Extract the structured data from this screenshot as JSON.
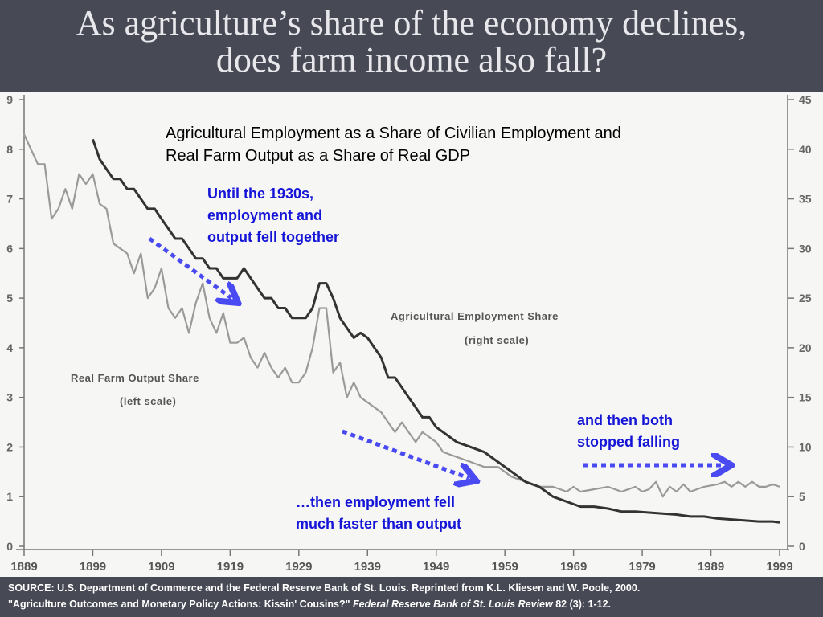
{
  "slide": {
    "title_line1": "As agriculture’s share of the economy declines,",
    "title_line2": "does farm income also fall?"
  },
  "chart_data": {
    "type": "line",
    "title_line1": "Agricultural Employment as a Share of Civilian Employment and",
    "title_line2": "Real Farm Output as a Share of Real GDP",
    "x_ticks": [
      "1889",
      "1899",
      "1909",
      "1919",
      "1929",
      "1939",
      "1949",
      "1959",
      "1969",
      "1979",
      "1989",
      "1999"
    ],
    "xlim": [
      1889,
      1999
    ],
    "left_axis": {
      "ticks": [
        "0",
        "1",
        "2",
        "3",
        "4",
        "5",
        "6",
        "7",
        "8",
        "9"
      ],
      "ylim": [
        0,
        9
      ]
    },
    "right_axis": {
      "ticks": [
        "0",
        "5",
        "10",
        "15",
        "20",
        "25",
        "30",
        "35",
        "40",
        "45"
      ],
      "ylim": [
        0,
        45
      ]
    },
    "series": [
      {
        "name": "Real Farm Output Share",
        "label_line1": "Real Farm Output Share",
        "label_line2": "(left scale)",
        "axis": "left",
        "color": "#9a9a9a",
        "x": [
          1889,
          1890,
          1891,
          1892,
          1893,
          1894,
          1895,
          1896,
          1897,
          1898,
          1899,
          1900,
          1901,
          1902,
          1903,
          1904,
          1905,
          1906,
          1907,
          1908,
          1909,
          1910,
          1911,
          1912,
          1913,
          1914,
          1915,
          1916,
          1917,
          1918,
          1919,
          1920,
          1921,
          1922,
          1923,
          1924,
          1925,
          1926,
          1927,
          1928,
          1929,
          1930,
          1931,
          1932,
          1933,
          1934,
          1935,
          1936,
          1937,
          1938,
          1939,
          1940,
          1941,
          1942,
          1943,
          1944,
          1945,
          1946,
          1947,
          1948,
          1949,
          1950,
          1952,
          1954,
          1956,
          1958,
          1960,
          1962,
          1964,
          1966,
          1968,
          1969,
          1970,
          1972,
          1974,
          1976,
          1978,
          1979,
          1980,
          1981,
          1982,
          1983,
          1984,
          1985,
          1986,
          1988,
          1990,
          1991,
          1992,
          1993,
          1994,
          1995,
          1996,
          1997,
          1998,
          1999
        ],
        "values": [
          8.3,
          8.0,
          7.7,
          7.7,
          6.6,
          6.8,
          7.2,
          6.8,
          7.5,
          7.3,
          7.5,
          6.9,
          6.8,
          6.1,
          6.0,
          5.9,
          5.5,
          5.9,
          5.0,
          5.2,
          5.6,
          4.8,
          4.6,
          4.8,
          4.3,
          4.9,
          5.3,
          4.6,
          4.3,
          4.7,
          4.1,
          4.1,
          4.2,
          3.8,
          3.6,
          3.9,
          3.6,
          3.4,
          3.6,
          3.3,
          3.3,
          3.5,
          4.0,
          4.8,
          4.8,
          3.5,
          3.7,
          3.0,
          3.3,
          3.0,
          2.9,
          2.8,
          2.7,
          2.5,
          2.3,
          2.5,
          2.3,
          2.1,
          2.3,
          2.2,
          2.1,
          1.9,
          1.8,
          1.7,
          1.6,
          1.6,
          1.4,
          1.3,
          1.2,
          1.2,
          1.1,
          1.2,
          1.1,
          1.15,
          1.2,
          1.1,
          1.2,
          1.1,
          1.15,
          1.3,
          1.0,
          1.2,
          1.1,
          1.25,
          1.1,
          1.2,
          1.25,
          1.3,
          1.2,
          1.3,
          1.2,
          1.3,
          1.2,
          1.2,
          1.25,
          1.2
        ]
      },
      {
        "name": "Agricultural Employment Share",
        "label_line1": "Agricultural Employment Share",
        "label_line2": "(right scale)",
        "axis": "right",
        "color": "#333333",
        "x": [
          1899,
          1900,
          1901,
          1902,
          1903,
          1904,
          1905,
          1906,
          1907,
          1908,
          1909,
          1910,
          1911,
          1912,
          1913,
          1914,
          1915,
          1916,
          1917,
          1918,
          1919,
          1920,
          1921,
          1922,
          1923,
          1924,
          1925,
          1926,
          1927,
          1928,
          1929,
          1930,
          1931,
          1932,
          1933,
          1934,
          1935,
          1936,
          1937,
          1938,
          1939,
          1940,
          1941,
          1942,
          1943,
          1944,
          1945,
          1946,
          1947,
          1948,
          1949,
          1950,
          1952,
          1954,
          1956,
          1958,
          1960,
          1962,
          1964,
          1966,
          1968,
          1970,
          1972,
          1974,
          1976,
          1978,
          1980,
          1982,
          1984,
          1986,
          1988,
          1990,
          1992,
          1994,
          1996,
          1998,
          1999
        ],
        "values": [
          41,
          39,
          38,
          37,
          37,
          36,
          36,
          35,
          34,
          34,
          33,
          32,
          31,
          31,
          30,
          29,
          29,
          28,
          28,
          27,
          27,
          27,
          28,
          27,
          26,
          25,
          25,
          24,
          24,
          23,
          23,
          23,
          24,
          26.5,
          26.5,
          25,
          23,
          22,
          21,
          21.5,
          21,
          20,
          19,
          17,
          17,
          16,
          15,
          14,
          13,
          13,
          12,
          11.5,
          10.5,
          10,
          9.5,
          8.5,
          7.5,
          6.5,
          6,
          5,
          4.5,
          4,
          4,
          3.8,
          3.5,
          3.5,
          3.4,
          3.3,
          3.2,
          3,
          3,
          2.8,
          2.7,
          2.6,
          2.5,
          2.5,
          2.4
        ]
      }
    ],
    "annotations": {
      "a1_line1": "Until the 1930s,",
      "a1_line2": "employment and",
      "a1_line3": "output fell together",
      "a2_line1": "…then employment fell",
      "a2_line2": "much faster than output",
      "a3_line1": "and then both",
      "a3_line2": "stopped falling"
    },
    "annotation_color": "#1515d8",
    "arrow_color": "#4a4af2"
  },
  "footer": {
    "source_line1": "SOURCE: U.S. Department of Commerce and the Federal Reserve Bank of St. Louis.   Reprinted from K.L. Kliesen and W. Poole, 2000.",
    "source_line2_a": "\"Agriculture Outcomes and Monetary Policy Actions: Kissin' Cousins?\" ",
    "source_line2_b": "Federal Reserve Bank of St. Louis Review",
    "source_line2_c": " 82 (3): 1-12."
  }
}
